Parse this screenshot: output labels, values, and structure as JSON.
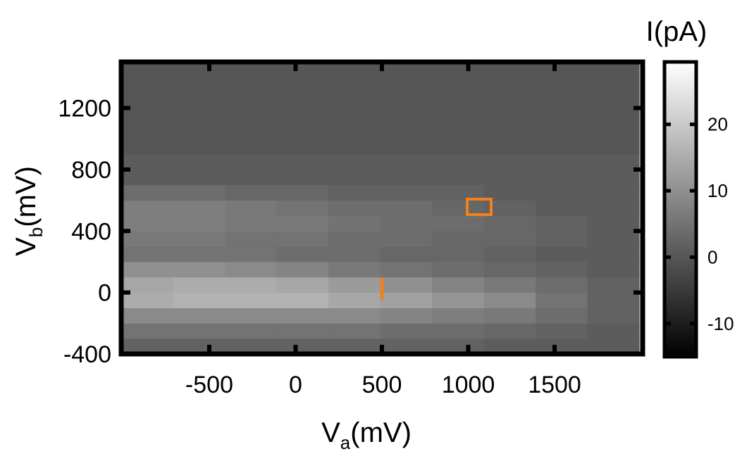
{
  "chart_data": {
    "type": "heatmap",
    "xlabel": [
      "V",
      "a",
      "(mV)"
    ],
    "ylabel": [
      "V",
      "b",
      "(mV)"
    ],
    "colorbar_label": "I(pA)",
    "x": [
      -860,
      -560,
      -260,
      40,
      340,
      640,
      940,
      1240,
      1540,
      1840
    ],
    "y": [
      -350,
      -250,
      -150,
      -50,
      50,
      150,
      250,
      350,
      450,
      550,
      650,
      750,
      850,
      950,
      1050,
      1150,
      1250,
      1350,
      1450
    ],
    "z": [
      [
        2,
        2,
        2,
        2,
        2,
        2,
        2,
        1,
        1,
        1
      ],
      [
        5,
        5,
        5,
        5,
        5,
        4,
        4,
        3,
        2,
        1
      ],
      [
        9,
        9,
        9,
        9,
        9,
        8,
        7,
        6,
        4,
        2
      ],
      [
        15,
        16,
        16,
        16,
        14,
        13,
        11,
        9,
        5,
        2
      ],
      [
        14,
        15,
        15,
        14,
        12,
        10,
        8,
        6,
        4,
        2
      ],
      [
        10,
        10,
        9,
        8,
        6,
        5,
        4,
        3,
        2,
        1
      ],
      [
        5,
        5,
        5,
        4,
        4,
        3,
        3,
        2,
        1,
        1
      ],
      [
        6,
        6,
        5,
        5,
        4,
        4,
        3,
        3,
        2,
        1
      ],
      [
        7,
        7,
        6,
        6,
        5,
        4,
        4,
        3,
        2,
        1
      ],
      [
        7,
        7,
        6,
        5,
        4,
        4,
        3,
        2,
        1,
        1
      ],
      [
        4,
        4,
        3,
        3,
        2,
        2,
        2,
        1,
        1,
        1
      ],
      [
        1,
        1,
        1,
        1,
        1,
        1,
        1,
        1,
        1,
        1
      ],
      [
        1,
        1,
        1,
        1,
        1,
        1,
        1,
        1,
        1,
        1
      ],
      [
        0,
        0,
        0,
        0,
        0,
        0,
        0,
        0,
        0,
        0
      ],
      [
        0,
        0,
        0,
        0,
        0,
        0,
        0,
        0,
        0,
        0
      ],
      [
        0,
        0,
        0,
        0,
        0,
        0,
        0,
        0,
        0,
        0
      ],
      [
        0,
        0,
        0,
        0,
        0,
        0,
        0,
        0,
        0,
        0
      ],
      [
        0,
        0,
        0,
        0,
        0,
        0,
        0,
        0,
        0,
        0
      ],
      [
        0,
        0,
        0,
        0,
        0,
        0,
        0,
        0,
        0,
        0
      ]
    ],
    "xlim": [
      -1010,
      2010
    ],
    "ylim": [
      -400,
      1500
    ],
    "xticks": [
      -500,
      0,
      500,
      1000,
      1500
    ],
    "yticks": [
      -400,
      0,
      400,
      800,
      1200
    ],
    "zlim": [
      -15,
      29.4
    ],
    "zticks": [
      -10,
      0,
      10,
      20
    ],
    "colormap": "gray"
  }
}
